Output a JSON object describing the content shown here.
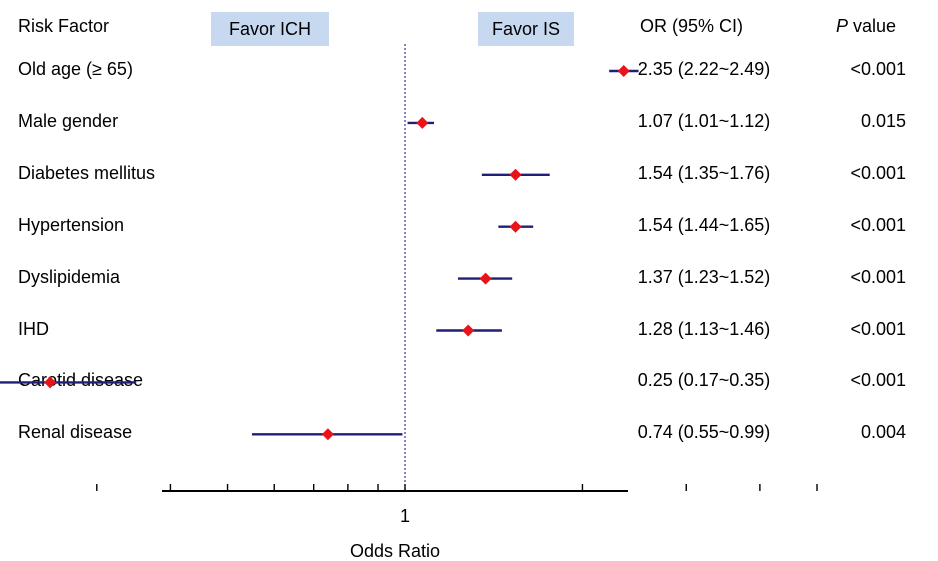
{
  "header": {
    "risk_factor": "Risk Factor",
    "favor_left": "Favor ICH",
    "favor_right": "Favor IS",
    "or_ci": "OR (95% CI)",
    "p_italic": "P",
    "p_rest": " value"
  },
  "chart_data": {
    "type": "forest",
    "xlabel": "Odds Ratio",
    "x_scale": "log",
    "reference_line": 1,
    "tick_labels": [
      "1"
    ],
    "xlim": [
      0.1,
      5.5
    ],
    "colors": {
      "marker": "#e8141b",
      "ci": "#1f1f7a",
      "reference": "#333399",
      "axis": "#000000"
    },
    "rows": [
      {
        "label": "Old age (≥ 65)",
        "or": 2.35,
        "lo": 2.22,
        "hi": 2.49,
        "or_text": "2.35 (2.22~2.49)",
        "p": "<0.001"
      },
      {
        "label": "Male gender",
        "or": 1.07,
        "lo": 1.01,
        "hi": 1.12,
        "or_text": "1.07 (1.01~1.12)",
        "p": "0.015"
      },
      {
        "label": "Diabetes mellitus",
        "or": 1.54,
        "lo": 1.35,
        "hi": 1.76,
        "or_text": "1.54 (1.35~1.76)",
        "p": "<0.001"
      },
      {
        "label": "Hypertension",
        "or": 1.54,
        "lo": 1.44,
        "hi": 1.65,
        "or_text": "1.54 (1.44~1.65)",
        "p": "<0.001"
      },
      {
        "label": "Dyslipidemia",
        "or": 1.37,
        "lo": 1.23,
        "hi": 1.52,
        "or_text": "1.37 (1.23~1.52)",
        "p": "<0.001"
      },
      {
        "label": "IHD",
        "or": 1.28,
        "lo": 1.13,
        "hi": 1.46,
        "or_text": "1.28 (1.13~1.46)",
        "p": "<0.001"
      },
      {
        "label": "Carotid disease",
        "or": 0.25,
        "lo": 0.17,
        "hi": 0.35,
        "or_text": "0.25 (0.17~0.35)",
        "p": "<0.001"
      },
      {
        "label": "Renal disease",
        "or": 0.74,
        "lo": 0.55,
        "hi": 0.99,
        "or_text": "0.74 (0.55~0.99)",
        "p": "0.004"
      }
    ]
  }
}
